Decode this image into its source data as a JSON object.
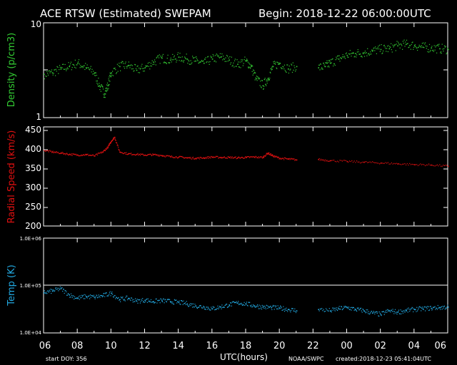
{
  "header": {
    "title": "ACE RTSW (Estimated) SWEPAM",
    "begin": "Begin: 2018-12-22 06:00:00UTC"
  },
  "footer": {
    "start_doy": "start DOY: 356",
    "xlabel": "UTC(hours)",
    "credit": "NOAA/SWPC",
    "created": "created:2018-12-23 05:41:04UTC"
  },
  "colors": {
    "density": "#33cc33",
    "speed": "#e01010",
    "temp": "#22a8e0",
    "frame": "#ffffff",
    "background": "#000000"
  },
  "chart_data": [
    {
      "type": "scatter",
      "ylabel": "Density (p/cm3)",
      "yscale": "log",
      "ylim": [
        1,
        10
      ],
      "yticks": [
        "1",
        "10"
      ],
      "xlim": [
        6,
        30
      ],
      "xticks": [
        "06",
        "08",
        "10",
        "12",
        "14",
        "16",
        "18",
        "20",
        "22",
        "00",
        "02",
        "04",
        "06"
      ],
      "data_gap": [
        21.1,
        22.3
      ],
      "series": [
        {
          "x": [
            6.0,
            6.5,
            7.0,
            7.5,
            8.0,
            8.5,
            9.0,
            9.3,
            9.6,
            9.8,
            10.0,
            10.5,
            11.0,
            11.5,
            12.0,
            12.5,
            13.0,
            13.5,
            14.0,
            14.5,
            15.0,
            15.5,
            16.0,
            16.5,
            17.0,
            17.5,
            18.0,
            18.3,
            18.6,
            19.0,
            19.3,
            19.6,
            20.0,
            20.5,
            21.0,
            22.3,
            22.7,
            23.0,
            23.5,
            24.0,
            24.5,
            25.0,
            25.5,
            26.0,
            26.5,
            27.0,
            27.5,
            28.0,
            28.5,
            29.0,
            29.5,
            30.0
          ],
          "y": [
            2.9,
            3.0,
            3.3,
            3.5,
            3.8,
            3.4,
            3.0,
            2.2,
            1.8,
            2.2,
            3.0,
            3.5,
            3.6,
            3.2,
            3.4,
            3.9,
            4.3,
            4.1,
            4.4,
            4.2,
            4.0,
            3.8,
            4.2,
            4.4,
            4.1,
            3.7,
            4.0,
            3.5,
            2.6,
            2.2,
            2.6,
            3.5,
            3.8,
            3.3,
            3.5,
            3.4,
            3.5,
            3.8,
            4.2,
            4.6,
            4.8,
            4.9,
            5.1,
            5.3,
            5.4,
            5.8,
            6.0,
            5.8,
            5.6,
            5.5,
            5.4,
            5.3
          ]
        }
      ]
    },
    {
      "type": "scatter",
      "ylabel": "Radial Speed (km/s)",
      "ylim": [
        200,
        450
      ],
      "yticks": [
        "200",
        "250",
        "300",
        "350",
        "400",
        "450"
      ],
      "xlim": [
        6,
        30
      ],
      "data_gap": [
        21.1,
        22.3
      ],
      "series": [
        {
          "x": [
            6.0,
            6.5,
            7.0,
            7.5,
            8.0,
            8.5,
            9.0,
            9.5,
            9.8,
            10.0,
            10.2,
            10.5,
            11.0,
            11.5,
            12.0,
            12.5,
            13.0,
            13.5,
            14.0,
            14.5,
            15.0,
            15.5,
            16.0,
            16.5,
            17.0,
            17.5,
            18.0,
            18.5,
            19.0,
            19.3,
            19.6,
            20.0,
            20.5,
            21.0,
            22.3,
            23.0,
            24.0,
            25.0,
            26.0,
            27.0,
            28.0,
            29.0,
            30.0
          ],
          "y": [
            392,
            388,
            385,
            382,
            380,
            381,
            378,
            388,
            400,
            415,
            425,
            388,
            383,
            382,
            380,
            381,
            379,
            376,
            375,
            373,
            372,
            373,
            375,
            374,
            374,
            373,
            374,
            375,
            374,
            385,
            378,
            372,
            370,
            368,
            369,
            366,
            364,
            362,
            360,
            358,
            356,
            355,
            352
          ]
        }
      ]
    },
    {
      "type": "scatter",
      "ylabel": "Temp (K)",
      "yscale": "log",
      "ylim": [
        10000,
        1000000
      ],
      "yticks": [
        "1.0E+04",
        "1.0E+05",
        "1.0E+06"
      ],
      "reference_line": 100000,
      "xlim": [
        6,
        30
      ],
      "data_gap": [
        21.1,
        22.3
      ],
      "series": [
        {
          "x": [
            6.0,
            6.5,
            7.0,
            7.5,
            8.0,
            8.5,
            9.0,
            9.5,
            10.0,
            10.5,
            11.0,
            11.5,
            12.0,
            12.5,
            13.0,
            13.5,
            14.0,
            14.5,
            15.0,
            15.5,
            16.0,
            16.5,
            17.0,
            17.5,
            18.0,
            18.5,
            19.0,
            19.5,
            20.0,
            20.5,
            21.0,
            22.3,
            23.0,
            23.5,
            24.0,
            24.5,
            25.0,
            25.5,
            26.0,
            26.5,
            27.0,
            27.5,
            28.0,
            28.5,
            29.0,
            29.5,
            30.0
          ],
          "y": [
            72000,
            78000,
            88000,
            65000,
            55000,
            60000,
            58000,
            62000,
            70000,
            52000,
            55000,
            48000,
            50000,
            47000,
            49000,
            47000,
            45000,
            42000,
            38000,
            36000,
            33000,
            36000,
            40000,
            44000,
            42000,
            38000,
            36000,
            35000,
            34000,
            32000,
            30000,
            32000,
            30000,
            33000,
            35000,
            32000,
            30000,
            27000,
            25000,
            30000,
            28000,
            30000,
            32000,
            33000,
            34000,
            35000,
            36000
          ]
        }
      ]
    }
  ]
}
